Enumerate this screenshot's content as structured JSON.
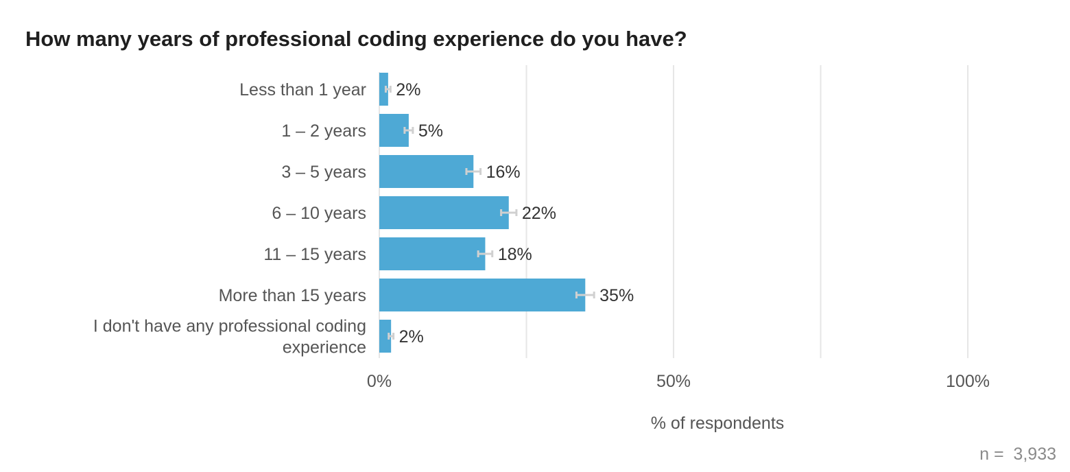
{
  "chart_data": {
    "type": "bar",
    "orientation": "horizontal",
    "title": "How many years of professional coding experience do you have?",
    "categories": [
      "Less than 1 year",
      "1 – 2 years",
      "3 – 5 years",
      "6 – 10 years",
      "11 – 15 years",
      "More than 15 years",
      "I don't have any professional coding experience"
    ],
    "category_lines": [
      [
        "Less than 1 year"
      ],
      [
        "1 – 2 years"
      ],
      [
        "3 – 5 years"
      ],
      [
        "6 – 10 years"
      ],
      [
        "11 – 15 years"
      ],
      [
        "More than 15 years"
      ],
      [
        "I don't have any professional coding",
        "experience"
      ]
    ],
    "values": [
      1.5,
      5,
      16,
      22,
      18,
      35,
      2
    ],
    "value_labels": [
      "2%",
      "5%",
      "16%",
      "22%",
      "18%",
      "35%",
      "2%"
    ],
    "error_half_width": [
      0.4,
      0.7,
      1.2,
      1.3,
      1.2,
      1.5,
      0.4
    ],
    "xlim": [
      0,
      100
    ],
    "gridlines": [
      0,
      25,
      50,
      75,
      100
    ],
    "xticks": [
      0,
      50,
      100
    ],
    "xtick_labels": [
      "0%",
      "50%",
      "100%"
    ],
    "xlabel": "% of respondents",
    "ylabel": "",
    "grid": true,
    "bar_color": "#4ea9d5",
    "error_bar_color": "#d0d0d0",
    "sample_size_label": "n =  3,933"
  }
}
